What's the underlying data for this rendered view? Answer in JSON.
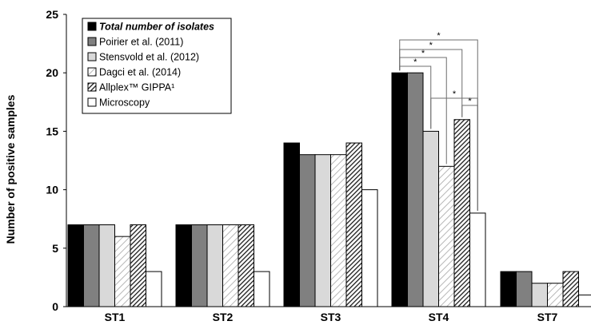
{
  "chart_data": {
    "type": "bar",
    "ylabel": "Number of positive samples",
    "ylim": [
      0,
      25
    ],
    "yticks": [
      0,
      5,
      10,
      15,
      20,
      25
    ],
    "grid": false,
    "legend_position": "top-left",
    "categories": [
      "ST1",
      "ST2",
      "ST3",
      "ST4",
      "ST7"
    ],
    "series": [
      {
        "name": "Total number of isolates",
        "pattern": "solid-black",
        "values": [
          7,
          7,
          14,
          20,
          3
        ]
      },
      {
        "name": "Poirier et al. (2011)",
        "pattern": "solid-gray",
        "values": [
          7,
          7,
          13,
          20,
          3
        ]
      },
      {
        "name": "Stensvold et al. (2012)",
        "pattern": "light-gray",
        "values": [
          7,
          7,
          13,
          15,
          2
        ]
      },
      {
        "name": "Dagci et al. (2014)",
        "pattern": "diagonal-light",
        "values": [
          6,
          7,
          13,
          12,
          2
        ]
      },
      {
        "name": "Allplex™ GIPPA¹",
        "pattern": "diagonal-dark",
        "values": [
          7,
          7,
          14,
          16,
          3
        ]
      },
      {
        "name": "Microscopy",
        "pattern": "white",
        "values": [
          3,
          3,
          10,
          8,
          1
        ]
      }
    ],
    "annotations": {
      "category": "ST4",
      "significance_brackets": [
        {
          "from_series": 0,
          "to_series": 5,
          "label": "*"
        },
        {
          "from_series": 0,
          "to_series": 4,
          "label": "*"
        },
        {
          "from_series": 0,
          "to_series": 3,
          "label": "*"
        },
        {
          "from_series": 0,
          "to_series": 2,
          "label": "*"
        },
        {
          "from_series": 2,
          "to_series": 5,
          "label": "*"
        },
        {
          "from_series": 4,
          "to_series": 5,
          "label": "*"
        }
      ]
    }
  },
  "colors": {
    "black": "#000000",
    "dark_gray": "#808080",
    "light_gray": "#d9d9d9",
    "white": "#ffffff",
    "axis": "#000000",
    "bracket": "#6f6f6f"
  }
}
